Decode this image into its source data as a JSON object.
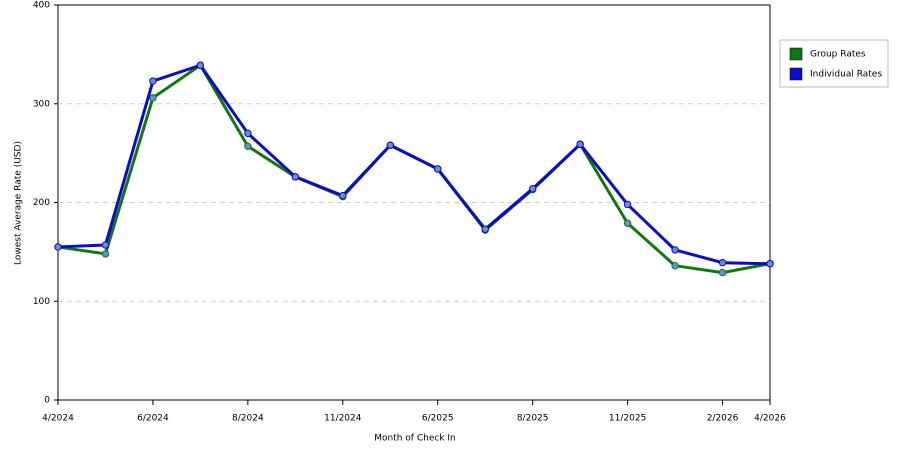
{
  "chart_data": {
    "type": "line",
    "x_label": "Month of Check In",
    "y_label": "Lowest Average Rate (USD)",
    "categories": [
      "4/2024",
      null,
      "6/2024",
      null,
      "8/2024",
      null,
      "11/2024",
      null,
      "6/2025",
      null,
      "8/2025",
      null,
      "11/2025",
      null,
      "2/2026",
      "4/2026"
    ],
    "series": [
      {
        "name": "Group Rates",
        "color": "#117711",
        "values": [
          155,
          148,
          306,
          339,
          257,
          226,
          206,
          258,
          234,
          172,
          213,
          259,
          179,
          136,
          129,
          138
        ]
      },
      {
        "name": "Individual Rates",
        "color": "#0b0bcc",
        "values": [
          155,
          157,
          323,
          339,
          270,
          226,
          207,
          258,
          234,
          173,
          214,
          259,
          198,
          152,
          139,
          138
        ]
      }
    ],
    "ylim": [
      0,
      400
    ],
    "yticks": [
      0,
      100,
      200,
      300,
      400
    ],
    "grid": true,
    "legend": "right"
  }
}
